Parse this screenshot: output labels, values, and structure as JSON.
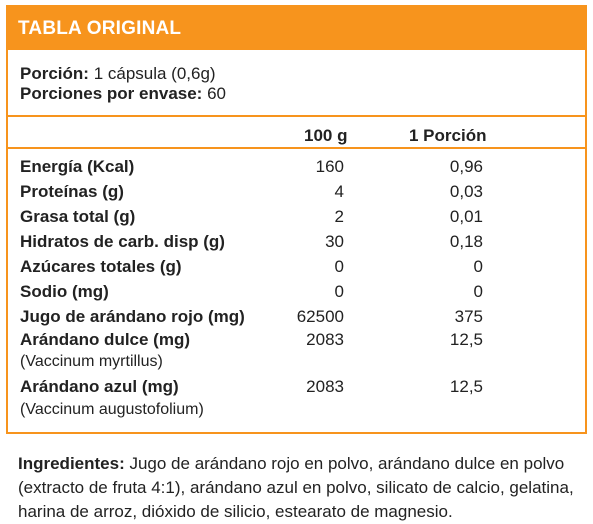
{
  "title": "TABLA ORIGINAL",
  "serving": {
    "portion_label": "Porción:",
    "portion_value": "1 cápsula (0,6g)",
    "per_container_label": "Porciones por envase:",
    "per_container_value": "60"
  },
  "columns": {
    "c1": "100 g",
    "c2": "1 Porción"
  },
  "rows": [
    {
      "name": "Energía (Kcal)",
      "v1": "160",
      "v2": "0,96"
    },
    {
      "name": "Proteínas (g)",
      "v1": "4",
      "v2": "0,03"
    },
    {
      "name": "Grasa total (g)",
      "v1": "2",
      "v2": "0,01"
    },
    {
      "name": "Hidratos de carb. disp (g)",
      "v1": "30",
      "v2": "0,18"
    },
    {
      "name": "Azúcares totales (g)",
      "v1": "0",
      "v2": "0"
    },
    {
      "name": "Sodio (mg)",
      "v1": "0",
      "v2": "0"
    },
    {
      "name": "Jugo de arándano rojo (mg)",
      "v1": "62500",
      "v2": "375"
    },
    {
      "name": "Arándano dulce (mg)",
      "v1": "2083",
      "v2": "12,5",
      "sub": "(Vaccinum myrtillus)"
    },
    {
      "name": "Arándano azul (mg)",
      "v1": "2083",
      "v2": "12,5",
      "sub": "(Vaccinum augustofolium)"
    }
  ],
  "ingredients": {
    "label": "Ingredientes:",
    "text": " Jugo de arándano rojo en polvo, arándano dulce en polvo (extracto de fruta 4:1), arándano azul en polvo, silicato de calcio, gelatina, harina de arroz, dióxido de silicio, estearato de magnesio."
  },
  "colors": {
    "accent": "#f7941d",
    "text": "#222222"
  }
}
